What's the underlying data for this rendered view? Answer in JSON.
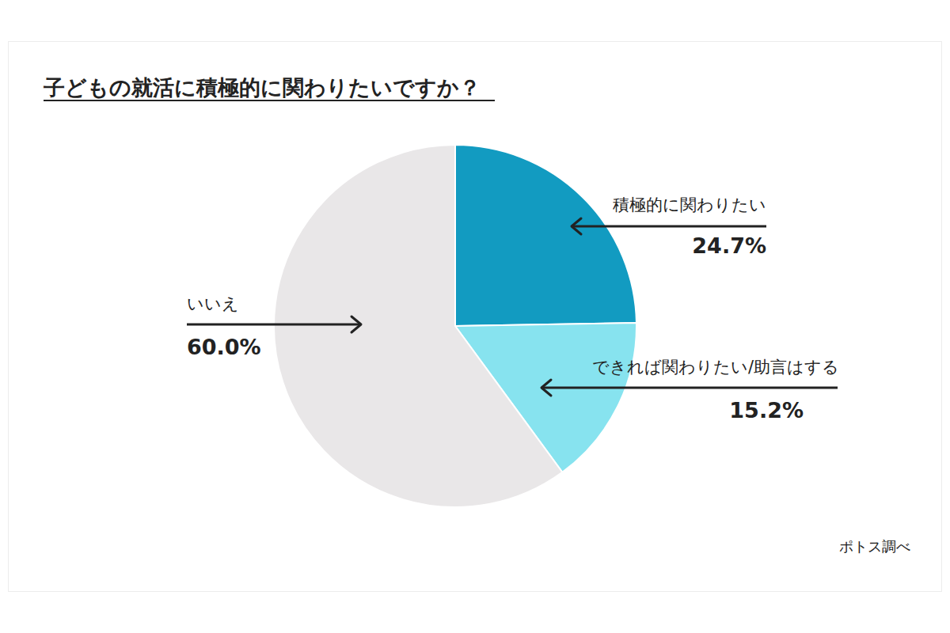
{
  "chart_data": {
    "type": "pie",
    "title": "子どもの就活に積極的に関わりたいですか？",
    "categories": [
      "積極的に関わりたい",
      "できれば関わりたい/助言はする",
      "いいえ"
    ],
    "values": [
      24.7,
      15.2,
      60.0
    ],
    "value_labels": [
      "24.7%",
      "15.2%",
      "60.0%"
    ],
    "colors": [
      "#129bc1",
      "#87e3ef",
      "#e9e7e8"
    ],
    "data_labels": true,
    "source": "ポトス調べ"
  }
}
